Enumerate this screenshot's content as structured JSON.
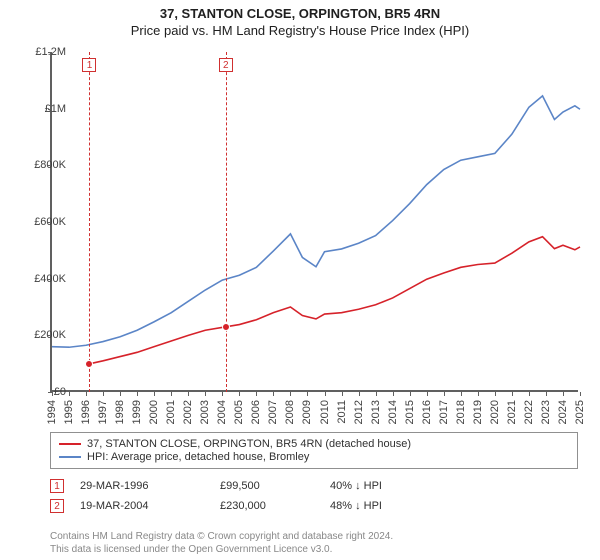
{
  "title": {
    "main": "37, STANTON CLOSE, ORPINGTON, BR5 4RN",
    "sub": "Price paid vs. HM Land Registry's House Price Index (HPI)"
  },
  "chart": {
    "type": "line",
    "x_axis": {
      "min": 1994,
      "max": 2025,
      "ticks": [
        1994,
        1995,
        1996,
        1997,
        1998,
        1999,
        2000,
        2001,
        2002,
        2003,
        2004,
        2005,
        2006,
        2007,
        2008,
        2009,
        2010,
        2011,
        2012,
        2013,
        2014,
        2015,
        2016,
        2017,
        2018,
        2019,
        2020,
        2021,
        2022,
        2023,
        2024,
        2025
      ]
    },
    "y_axis": {
      "min": 0,
      "max": 1200000,
      "ticks": [
        0,
        200000,
        400000,
        600000,
        800000,
        1000000,
        1200000
      ],
      "tick_labels": [
        "£0",
        "£200K",
        "£400K",
        "£600K",
        "£800K",
        "£1M",
        "£1.2M"
      ]
    },
    "background_color": "#ffffff",
    "axis_color": "#606060",
    "tick_font_size": 11,
    "tick_color": "#404040",
    "line_width": 1.6,
    "series": [
      {
        "name": "property",
        "label": "37, STANTON CLOSE, ORPINGTON, BR5 4RN (detached house)",
        "color": "#d6222a",
        "points": [
          [
            1996.2,
            99500
          ],
          [
            1997,
            110000
          ],
          [
            1998,
            125000
          ],
          [
            1999,
            140000
          ],
          [
            2000,
            160000
          ],
          [
            2001,
            180000
          ],
          [
            2002,
            200000
          ],
          [
            2003,
            218000
          ],
          [
            2004.2,
            230000
          ],
          [
            2005,
            238000
          ],
          [
            2006,
            255000
          ],
          [
            2007,
            280000
          ],
          [
            2008,
            300000
          ],
          [
            2008.7,
            270000
          ],
          [
            2009.5,
            258000
          ],
          [
            2010,
            275000
          ],
          [
            2011,
            280000
          ],
          [
            2012,
            292000
          ],
          [
            2013,
            308000
          ],
          [
            2014,
            332000
          ],
          [
            2015,
            365000
          ],
          [
            2016,
            398000
          ],
          [
            2017,
            420000
          ],
          [
            2018,
            440000
          ],
          [
            2019,
            450000
          ],
          [
            2020,
            455000
          ],
          [
            2021,
            490000
          ],
          [
            2022,
            530000
          ],
          [
            2022.8,
            548000
          ],
          [
            2023.5,
            506000
          ],
          [
            2024,
            518000
          ],
          [
            2024.7,
            502000
          ],
          [
            2025,
            512000
          ]
        ]
      },
      {
        "name": "hpi",
        "label": "HPI: Average price, detached house, Bromley",
        "color": "#5b85c7",
        "points": [
          [
            1994,
            160000
          ],
          [
            1995,
            158000
          ],
          [
            1996,
            165000
          ],
          [
            1997,
            178000
          ],
          [
            1998,
            195000
          ],
          [
            1999,
            218000
          ],
          [
            2000,
            248000
          ],
          [
            2001,
            280000
          ],
          [
            2002,
            320000
          ],
          [
            2003,
            360000
          ],
          [
            2004,
            395000
          ],
          [
            2005,
            412000
          ],
          [
            2006,
            440000
          ],
          [
            2007,
            498000
          ],
          [
            2008,
            558000
          ],
          [
            2008.7,
            475000
          ],
          [
            2009.5,
            442000
          ],
          [
            2010,
            495000
          ],
          [
            2011,
            505000
          ],
          [
            2012,
            525000
          ],
          [
            2013,
            552000
          ],
          [
            2014,
            605000
          ],
          [
            2015,
            665000
          ],
          [
            2016,
            732000
          ],
          [
            2017,
            785000
          ],
          [
            2018,
            818000
          ],
          [
            2019,
            830000
          ],
          [
            2020,
            842000
          ],
          [
            2021,
            910000
          ],
          [
            2022,
            1005000
          ],
          [
            2022.8,
            1045000
          ],
          [
            2023.5,
            962000
          ],
          [
            2024,
            988000
          ],
          [
            2024.7,
            1010000
          ],
          [
            2025,
            998000
          ]
        ]
      }
    ],
    "transactions": [
      {
        "n": "1",
        "year": 1996.2,
        "date": "29-MAR-1996",
        "price_label": "£99,500",
        "price": 99500,
        "pct": "40%",
        "dir": "↓",
        "tag": "HPI"
      },
      {
        "n": "2",
        "year": 2004.2,
        "date": "19-MAR-2004",
        "price_label": "£230,000",
        "price": 230000,
        "pct": "48%",
        "dir": "↓",
        "tag": "HPI"
      }
    ],
    "marker_style": {
      "fill": "#d6222a",
      "stroke": "#ffffff",
      "radius": 4
    },
    "vline_color": "#d03030",
    "vline_dash": "3,3"
  },
  "legend": {
    "border_color": "#909090",
    "font_size": 11
  },
  "footer": {
    "line1": "Contains HM Land Registry data © Crown copyright and database right 2024.",
    "line2": "This data is licensed under the Open Government Licence v3.0."
  }
}
